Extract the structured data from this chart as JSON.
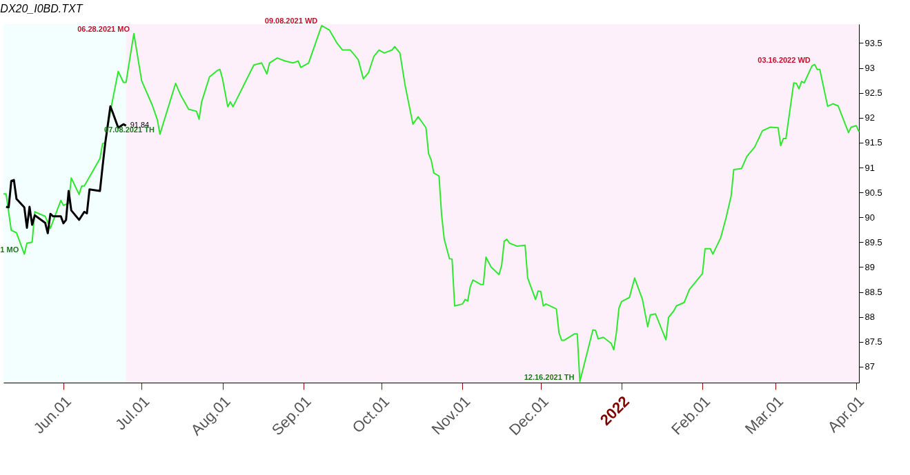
{
  "chart_data": {
    "type": "line",
    "title": "DX20_I0BD.TXT",
    "xlim": [
      "2021-05-09",
      "2022-04-02"
    ],
    "xticks": [
      {
        "value": "2021-06-01",
        "label": "Jun.01"
      },
      {
        "value": "2021-07-01",
        "label": "Jul.01"
      },
      {
        "value": "2021-08-01",
        "label": "Aug.01"
      },
      {
        "value": "2021-09-01",
        "label": "Sep.01"
      },
      {
        "value": "2021-10-01",
        "label": "Oct.01"
      },
      {
        "value": "2021-11-01",
        "label": "Nov.01"
      },
      {
        "value": "2021-12-01",
        "label": "Dec.01"
      },
      {
        "value": "2022-01-01",
        "label": "2022"
      },
      {
        "value": "2022-02-01",
        "label": "Feb.01"
      },
      {
        "value": "2022-03-01",
        "label": "Mar.01"
      },
      {
        "value": "2022-04-01",
        "label": "Apr.01"
      }
    ],
    "ylim": [
      86.68,
      93.88
    ],
    "yticks": [
      87,
      87.5,
      88,
      88.5,
      89,
      89.5,
      90,
      90.5,
      91,
      91.5,
      92,
      92.5,
      93,
      93.5
    ],
    "grid": false,
    "legend": false,
    "marker": "none",
    "line_style": "solid",
    "bands": [
      {
        "axis": "x",
        "from": "2021-05-09",
        "to": "2021-06-25",
        "color": "#f3fefe"
      },
      {
        "axis": "x",
        "from": "2021-06-25",
        "to": "2022-04-02",
        "color": "#fdf0fb"
      }
    ],
    "series": [
      {
        "color": "#2ee82e",
        "x": [
          "2021-05-09",
          "2021-05-10",
          "2021-05-12",
          "2021-05-14",
          "2021-05-17",
          "2021-05-18",
          "2021-05-20",
          "2021-05-21",
          "2021-05-25",
          "2021-05-27",
          "2021-05-31",
          "2021-06-01",
          "2021-06-03",
          "2021-06-04",
          "2021-06-07",
          "2021-06-08",
          "2021-06-09",
          "2021-06-15",
          "2021-06-16",
          "2021-06-17",
          "2021-06-19",
          "2021-06-22",
          "2021-06-24",
          "2021-06-25",
          "2021-06-28",
          "2021-07-01",
          "2021-07-05",
          "2021-07-07",
          "2021-07-08",
          "2021-07-14",
          "2021-07-16",
          "2021-07-19",
          "2021-07-22",
          "2021-07-23",
          "2021-07-24",
          "2021-07-27",
          "2021-07-30",
          "2021-07-31",
          "2021-08-01",
          "2021-08-03",
          "2021-08-04",
          "2021-08-05",
          "2021-08-13",
          "2021-08-16",
          "2021-08-18",
          "2021-08-19",
          "2021-08-22",
          "2021-08-25",
          "2021-08-28",
          "2021-08-30",
          "2021-08-31",
          "2021-09-03",
          "2021-09-08",
          "2021-09-11",
          "2021-09-14",
          "2021-09-16",
          "2021-09-19",
          "2021-09-22",
          "2021-09-24",
          "2021-09-26",
          "2021-09-28",
          "2021-09-30",
          "2021-10-02",
          "2021-10-05",
          "2021-10-06",
          "2021-10-08",
          "2021-10-10",
          "2021-10-13",
          "2021-10-15",
          "2021-10-18",
          "2021-10-19",
          "2021-10-20",
          "2021-10-21",
          "2021-10-23",
          "2021-10-24",
          "2021-10-25",
          "2021-10-27",
          "2021-10-28",
          "2021-10-29",
          "2021-11-01",
          "2021-11-02",
          "2021-11-03",
          "2021-11-04",
          "2021-11-05",
          "2021-11-08",
          "2021-11-09",
          "2021-11-10",
          "2021-11-12",
          "2021-11-15",
          "2021-11-16",
          "2021-11-17",
          "2021-11-18",
          "2021-11-19",
          "2021-11-22",
          "2021-11-25",
          "2021-11-26",
          "2021-11-29",
          "2021-11-30",
          "2021-12-01",
          "2021-12-02",
          "2021-12-03",
          "2021-12-07",
          "2021-12-08",
          "2021-12-09",
          "2021-12-10",
          "2021-12-14",
          "2021-12-15",
          "2021-12-16",
          "2021-12-21",
          "2021-12-22",
          "2021-12-23",
          "2021-12-25",
          "2021-12-28",
          "2021-12-29",
          "2021-12-30",
          "2021-12-31",
          "2022-01-01",
          "2022-01-04",
          "2022-01-06",
          "2022-01-09",
          "2022-01-11",
          "2022-01-12",
          "2022-01-14",
          "2022-01-18",
          "2022-01-19",
          "2022-01-21",
          "2022-01-22",
          "2022-01-25",
          "2022-01-27",
          "2022-01-30",
          "2022-02-01",
          "2022-02-02",
          "2022-02-04",
          "2022-02-05",
          "2022-02-08",
          "2022-02-10",
          "2022-02-12",
          "2022-02-13",
          "2022-02-16",
          "2022-02-18",
          "2022-02-21",
          "2022-02-24",
          "2022-02-27",
          "2022-03-02",
          "2022-03-03",
          "2022-03-04",
          "2022-03-05",
          "2022-03-08",
          "2022-03-09",
          "2022-03-10",
          "2022-03-11",
          "2022-03-12",
          "2022-03-15",
          "2022-03-16",
          "2022-03-17",
          "2022-03-18",
          "2022-03-21",
          "2022-03-23",
          "2022-03-25",
          "2022-03-29",
          "2022-03-30",
          "2022-04-01",
          "2022-04-02"
        ],
        "values": [
          90.47,
          90.47,
          89.74,
          89.69,
          89.26,
          89.48,
          89.5,
          90.11,
          90.02,
          89.78,
          90.34,
          90.24,
          90.28,
          90.79,
          90.46,
          90.63,
          90.63,
          91.18,
          91.48,
          91.5,
          92.13,
          92.93,
          92.71,
          92.71,
          93.69,
          92.74,
          92.26,
          91.96,
          91.67,
          92.69,
          92.45,
          92.17,
          92.13,
          91.97,
          92.32,
          92.82,
          92.95,
          92.97,
          92.78,
          92.22,
          92.32,
          92.22,
          93.06,
          93.1,
          92.88,
          93.1,
          93.2,
          93.14,
          93.1,
          93.14,
          93.01,
          93.1,
          93.85,
          93.76,
          93.49,
          93.36,
          93.36,
          93.17,
          92.78,
          92.91,
          93.23,
          93.36,
          93.3,
          93.36,
          93.43,
          93.3,
          92.65,
          91.87,
          92.02,
          91.8,
          91.28,
          91.15,
          90.89,
          90.83,
          90.04,
          89.56,
          89.17,
          89.16,
          88.22,
          88.26,
          88.35,
          88.32,
          88.61,
          88.74,
          88.65,
          88.65,
          89.2,
          89.0,
          88.85,
          89.03,
          89.52,
          89.56,
          89.48,
          89.42,
          89.44,
          88.78,
          88.35,
          88.52,
          88.51,
          88.22,
          88.26,
          88.16,
          87.68,
          87.53,
          87.53,
          87.66,
          87.66,
          86.7,
          87.74,
          87.73,
          87.56,
          87.59,
          87.47,
          87.34,
          87.68,
          88.18,
          88.31,
          88.39,
          88.78,
          88.35,
          87.8,
          88.04,
          88.06,
          87.54,
          87.99,
          88.12,
          88.22,
          88.29,
          88.55,
          88.74,
          88.87,
          89.37,
          89.37,
          89.26,
          89.59,
          89.98,
          90.43,
          90.96,
          90.98,
          91.22,
          91.41,
          91.74,
          91.81,
          91.8,
          91.44,
          91.58,
          91.58,
          92.7,
          92.69,
          92.58,
          92.73,
          92.7,
          93.04,
          93.07,
          92.97,
          92.97,
          92.23,
          92.28,
          92.24,
          91.7,
          91.81,
          91.84,
          91.72
        ]
      },
      {
        "color": "#000000",
        "x": [
          "2021-05-10",
          "2021-05-11",
          "2021-05-12",
          "2021-05-13",
          "2021-05-14",
          "2021-05-17",
          "2021-05-18",
          "2021-05-19",
          "2021-05-20",
          "2021-05-21",
          "2021-05-25",
          "2021-05-26",
          "2021-05-27",
          "2021-05-28",
          "2021-05-31",
          "2021-06-01",
          "2021-06-02",
          "2021-06-03",
          "2021-06-04",
          "2021-06-07",
          "2021-06-09",
          "2021-06-10",
          "2021-06-11",
          "2021-06-15",
          "2021-06-16",
          "2021-06-17",
          "2021-06-19",
          "2021-06-20",
          "2021-06-22",
          "2021-06-24",
          "2021-06-25"
        ],
        "values": [
          90.21,
          90.2,
          90.73,
          90.75,
          90.37,
          90.2,
          89.79,
          90.21,
          89.85,
          90.04,
          89.89,
          89.68,
          90.07,
          90.02,
          90.02,
          89.88,
          89.95,
          90.53,
          90.14,
          89.95,
          90.11,
          90.08,
          90.56,
          90.53,
          91.02,
          91.48,
          92.23,
          92.09,
          91.8,
          91.87,
          91.84
        ]
      }
    ],
    "annotations": [
      {
        "text": "06.28.2021 MO",
        "x": "2021-06-28",
        "y": 93.69
      },
      {
        "text": "07.08.2021 TH",
        "x": "2021-07-08",
        "y": 91.67
      },
      {
        "text": "09.08.2021 WD",
        "x": "2021-09-08",
        "y": 93.85
      },
      {
        "text": "12.16.2021 TH",
        "x": "2021-12-16",
        "y": 86.7
      },
      {
        "text": "03.16.2022 WD",
        "x": "2022-03-16",
        "y": 93.07
      },
      {
        "text": "1 MO",
        "x": "2021-05-17",
        "y": 89.26
      },
      {
        "text": "91.84",
        "x": "2021-06-25",
        "y": 91.84
      }
    ]
  }
}
